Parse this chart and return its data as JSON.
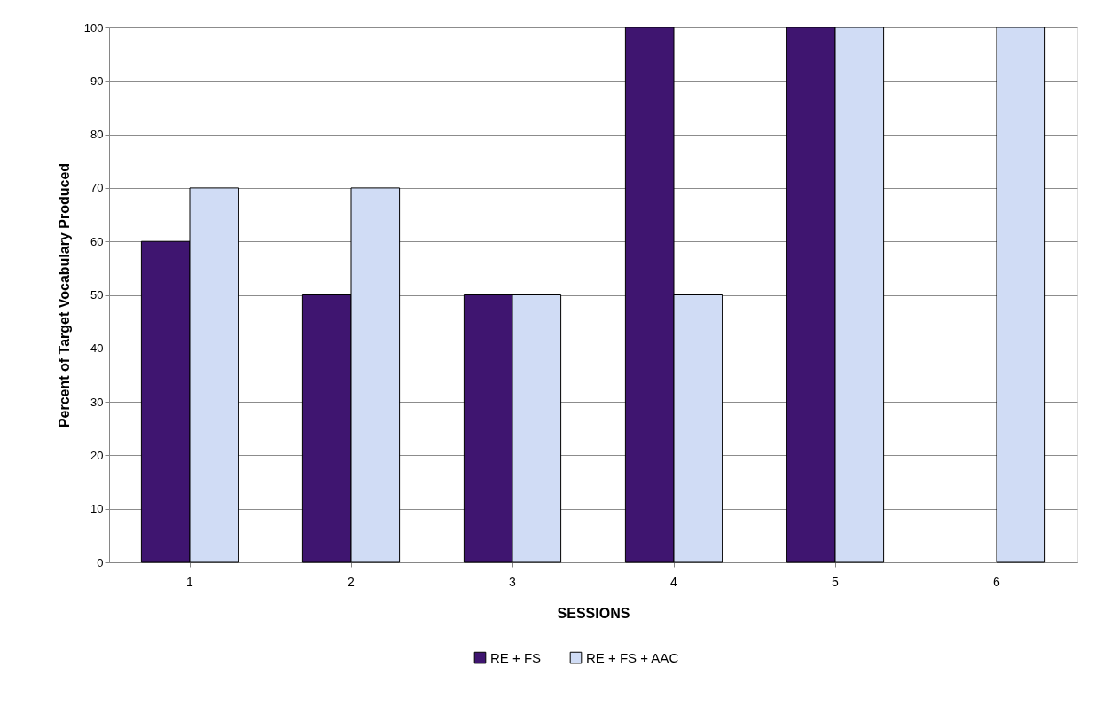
{
  "chart_data": {
    "type": "bar",
    "xlabel": "SESSIONS",
    "ylabel": "Percent of Target Vocabulary Produced",
    "categories": [
      "1",
      "2",
      "3",
      "4",
      "5",
      "6"
    ],
    "series": [
      {
        "name": "RE + FS",
        "color": "#3f1570",
        "values": [
          60,
          50,
          50,
          100,
          100,
          null
        ]
      },
      {
        "name": "RE + FS + AAC",
        "color": "#d0dcf5",
        "values": [
          70,
          70,
          50,
          50,
          100,
          100
        ]
      }
    ],
    "ylim": [
      0,
      100
    ],
    "yticks": [
      0,
      10,
      20,
      30,
      40,
      50,
      60,
      70,
      80,
      90,
      100
    ],
    "grid": "y",
    "legend": "bottom"
  }
}
